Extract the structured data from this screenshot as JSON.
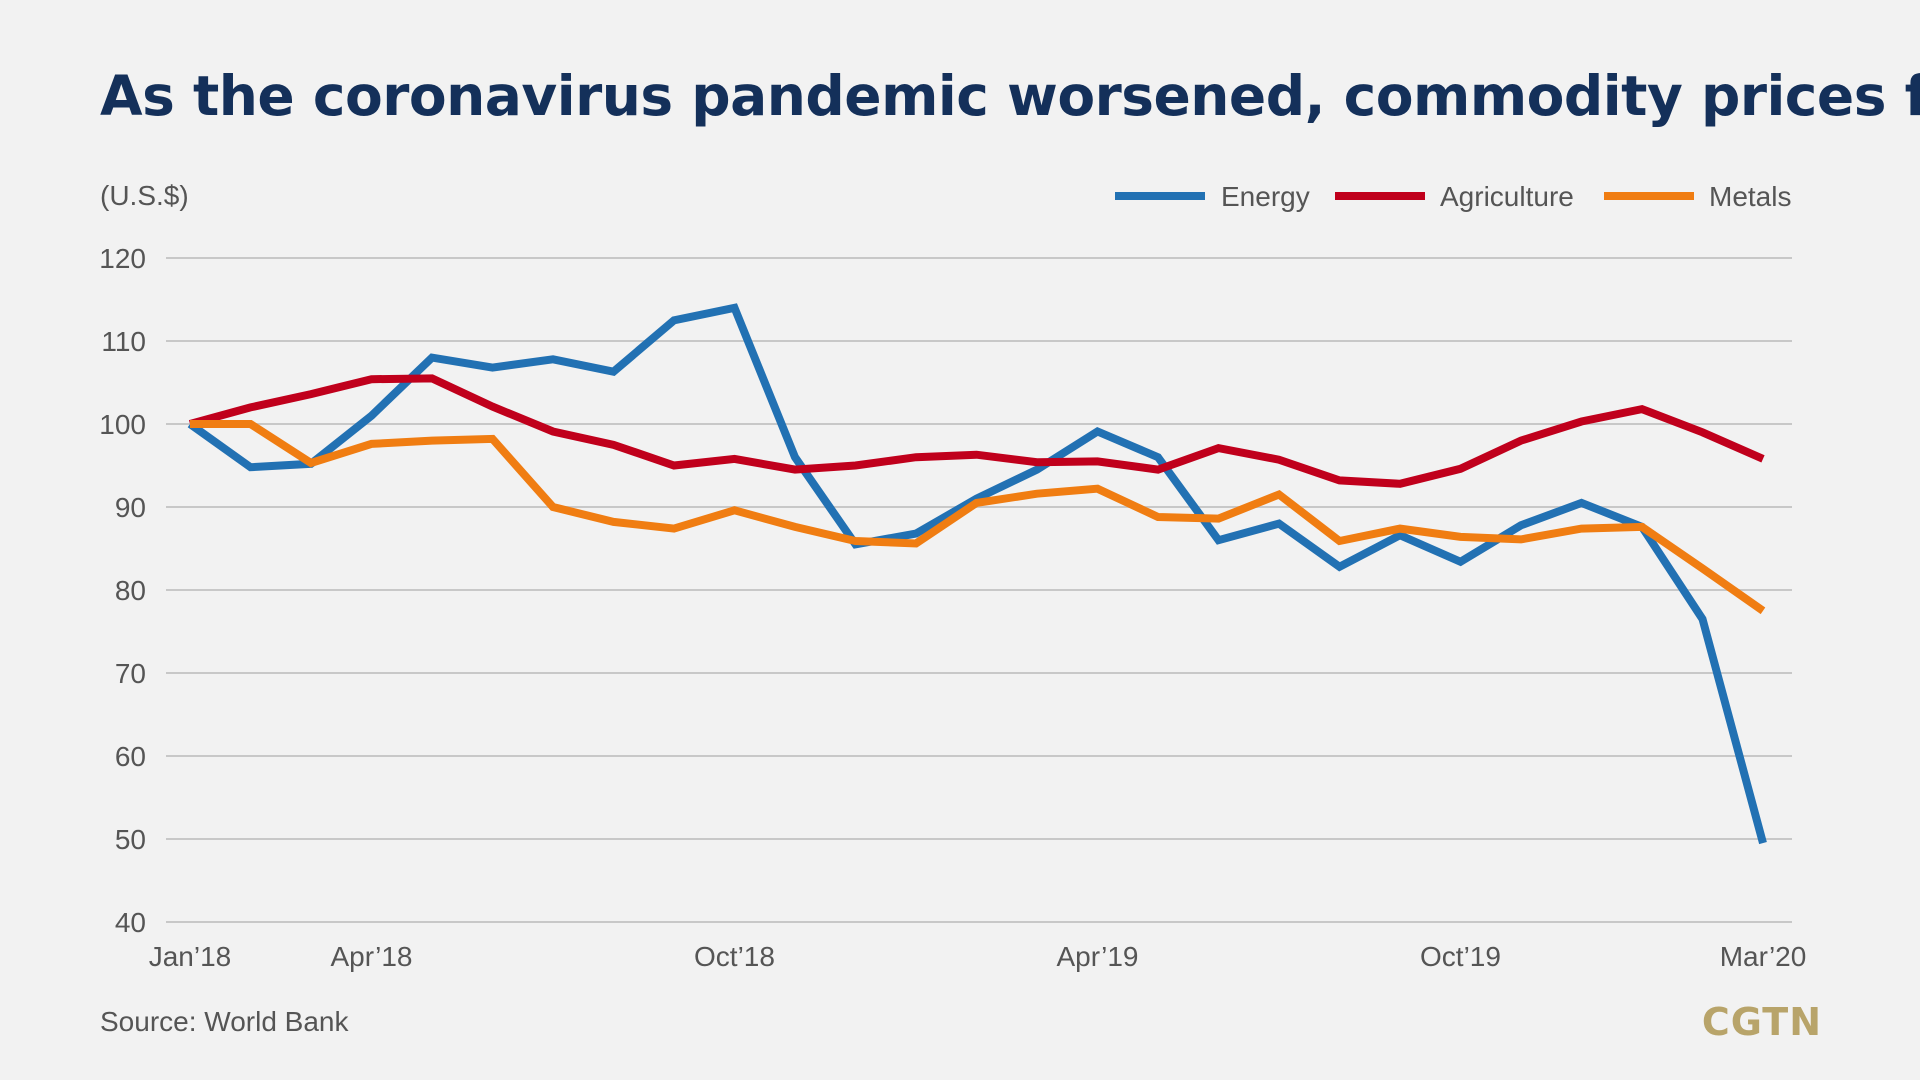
{
  "colors": {
    "background": "#f2f2f2",
    "title": "#14305a",
    "grid": "#c8c8c8",
    "text": "#555555",
    "energy": "#2271b3",
    "agriculture": "#c0001c",
    "metals": "#f07d12",
    "logo": "#b8a46a"
  },
  "source": "Source: World Bank",
  "logo": "CGTN",
  "chart_data": {
    "type": "line",
    "title": "As the coronavirus pandemic worsened, commodity prices fell",
    "ylabel": "(U.S.$)",
    "xlabel": "",
    "ylim": [
      40,
      120
    ],
    "yticks": [
      40,
      50,
      60,
      70,
      80,
      90,
      100,
      110,
      120
    ],
    "grid": true,
    "legend_position": "top-right",
    "x": [
      "Jan'18",
      "Feb'18",
      "Mar'18",
      "Apr'18",
      "May'18",
      "Jun'18",
      "Jul'18",
      "Aug'18",
      "Sep'18",
      "Oct'18",
      "Nov'18",
      "Dec'18",
      "Jan'19",
      "Feb'19",
      "Mar'19",
      "Apr'19",
      "May'19",
      "Jun'19",
      "Jul'19",
      "Aug'19",
      "Sep'19",
      "Oct'19",
      "Nov'19",
      "Dec'19",
      "Jan'20",
      "Feb'20",
      "Mar'20"
    ],
    "xtick_labels": [
      {
        "index": 0,
        "label": "Jan’18"
      },
      {
        "index": 3,
        "label": "Apr’18"
      },
      {
        "index": 9,
        "label": "Oct’18"
      },
      {
        "index": 15,
        "label": "Apr’19"
      },
      {
        "index": 21,
        "label": "Oct’19"
      },
      {
        "index": 26,
        "label": "Mar’20"
      }
    ],
    "series": [
      {
        "name": "Energy",
        "color": "#2271b3",
        "values": [
          100,
          94.8,
          95.2,
          101,
          108,
          106.8,
          107.8,
          106.3,
          112.5,
          114,
          96,
          85.5,
          86.8,
          91,
          94.5,
          99.1,
          96,
          86,
          88,
          82.8,
          86.6,
          83.4,
          87.8,
          90.5,
          87.6,
          76.5,
          49.5
        ]
      },
      {
        "name": "Agriculture",
        "color": "#c0001c",
        "values": [
          100,
          102,
          103.6,
          105.4,
          105.5,
          102.1,
          99.1,
          97.5,
          95,
          95.8,
          94.5,
          95,
          96,
          96.3,
          95.4,
          95.5,
          94.5,
          97.1,
          95.7,
          93.2,
          92.8,
          94.6,
          98,
          100.3,
          101.8,
          99,
          95.8
        ]
      },
      {
        "name": "Metals",
        "color": "#f07d12",
        "values": [
          100,
          100,
          95.3,
          97.6,
          98,
          98.2,
          90,
          88.2,
          87.4,
          89.6,
          87.6,
          85.9,
          85.6,
          90.5,
          91.6,
          92.2,
          88.8,
          88.6,
          91.5,
          85.9,
          87.4,
          86.4,
          86.1,
          87.4,
          87.6,
          82.6,
          77.5
        ]
      }
    ]
  }
}
